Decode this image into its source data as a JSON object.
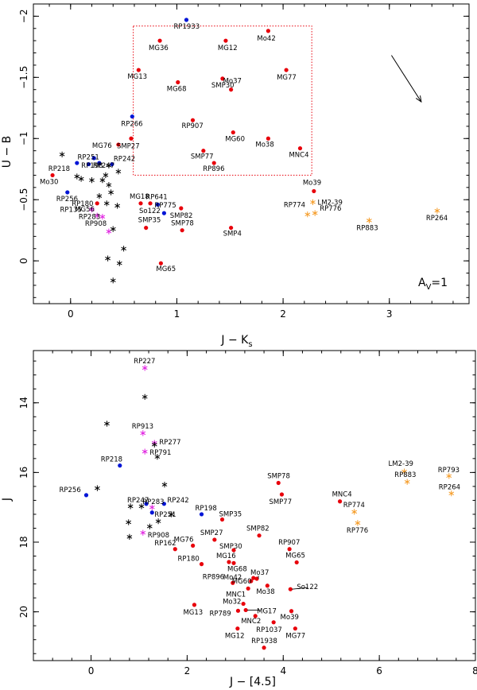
{
  "chart_data": [
    {
      "type": "scatter",
      "title": "",
      "xlabel": "J − K",
      "xlabel_sub": "s",
      "ylabel": "U − B",
      "xlim": [
        -0.35,
        3.75
      ],
      "ylim": [
        0.35,
        -2.1
      ],
      "xticks": [
        0,
        1,
        2,
        3
      ],
      "xtick_labels": [
        "0",
        "1",
        "2",
        "3"
      ],
      "yticks": [
        0,
        -0.5,
        -1,
        -1.5,
        -2
      ],
      "ytick_labels": [
        "0",
        "−0.5",
        "−1",
        "−1.5",
        "−2"
      ],
      "colors": {
        "red": "#e8000b",
        "blue": "#0015d6",
        "magenta": "#e020e0",
        "orange": "#f59a23",
        "black": "#000000"
      },
      "series": [
        {
          "name": "red-dots",
          "marker": "dot",
          "color": "red",
          "points": [
            {
              "label": "MG65",
              "x": 0.85,
              "y": 0.02
            },
            {
              "label": "SMP35",
              "x": 0.71,
              "y": -0.27
            },
            {
              "label": "SMP78",
              "x": 1.05,
              "y": -0.25
            },
            {
              "label": "SMP4",
              "x": 1.51,
              "y": -0.27
            },
            {
              "label": "MG18",
              "x": 0.66,
              "y": -0.47
            },
            {
              "label": "So122",
              "x": 0.75,
              "y": -0.47
            },
            {
              "label": "SMP82",
              "x": 1.04,
              "y": -0.43
            },
            {
              "label": "RP180",
              "x": 0.25,
              "y": -0.47
            },
            {
              "label": "Mo30",
              "x": -0.17,
              "y": -0.7
            },
            {
              "label": "RP896",
              "x": 1.35,
              "y": -0.8
            },
            {
              "label": "SMP77",
              "x": 1.25,
              "y": -0.9
            },
            {
              "label": "MG76",
              "x": 0.45,
              "y": -0.95
            },
            {
              "label": "SMP27",
              "x": 0.57,
              "y": -1.0
            },
            {
              "label": "RP907",
              "x": 1.15,
              "y": -1.15
            },
            {
              "label": "MG60",
              "x": 1.53,
              "y": -1.05
            },
            {
              "label": "Mo38",
              "x": 1.86,
              "y": -1.0
            },
            {
              "label": "MNC4",
              "x": 2.16,
              "y": -0.92
            },
            {
              "label": "Mo37",
              "x": 1.51,
              "y": -1.4
            },
            {
              "label": "SMP30",
              "x": 1.43,
              "y": -1.49
            },
            {
              "label": "MG68",
              "x": 1.01,
              "y": -1.46
            },
            {
              "label": "MG13",
              "x": 0.64,
              "y": -1.56
            },
            {
              "label": "MG77",
              "x": 2.03,
              "y": -1.56
            },
            {
              "label": "MG36",
              "x": 0.84,
              "y": -1.8
            },
            {
              "label": "MG12",
              "x": 1.46,
              "y": -1.8
            },
            {
              "label": "Mo42",
              "x": 1.86,
              "y": -1.88
            },
            {
              "label": "Mo39",
              "x": 2.29,
              "y": -0.57
            }
          ]
        },
        {
          "name": "blue-dots",
          "marker": "dot",
          "color": "blue",
          "points": [
            {
              "label": "RP775",
              "x": 0.88,
              "y": -0.39
            },
            {
              "label": "RP641",
              "x": 0.82,
              "y": -0.46
            },
            {
              "label": "RP256",
              "x": -0.03,
              "y": -0.56
            },
            {
              "label": "RP218",
              "x": 0.06,
              "y": -0.8
            },
            {
              "label": "RP251",
              "x": 0.17,
              "y": -0.79
            },
            {
              "label": "RP247",
              "x": 0.27,
              "y": -0.8
            },
            {
              "label": "RP198",
              "x": 0.22,
              "y": -0.84
            },
            {
              "label": "RP242",
              "x": 0.39,
              "y": -0.79
            },
            {
              "label": "RP266",
              "x": 0.58,
              "y": -1.18
            },
            {
              "label": "RP1933",
              "x": 1.09,
              "y": -1.97
            }
          ]
        },
        {
          "name": "magenta-stars",
          "marker": "star",
          "color": "magenta",
          "points": [
            {
              "label": "RP908",
              "x": 0.36,
              "y": -0.24
            },
            {
              "label": "RP283",
              "x": 0.3,
              "y": -0.36
            },
            {
              "label": "MG56",
              "x": 0.25,
              "y": -0.37
            },
            {
              "label": "RP135",
              "x": 0.2,
              "y": -0.42
            }
          ]
        },
        {
          "name": "orange-stars",
          "marker": "star",
          "color": "orange",
          "points": [
            {
              "label": "RP774",
              "x": 2.23,
              "y": -0.38
            },
            {
              "label": "RP776",
              "x": 2.3,
              "y": -0.39
            },
            {
              "label": "RP883",
              "x": 2.81,
              "y": -0.33
            },
            {
              "label": "RP264",
              "x": 3.45,
              "y": -0.41
            },
            {
              "label": "LM2-39",
              "x": 2.28,
              "y": -0.48
            }
          ]
        },
        {
          "name": "black-stars",
          "marker": "star",
          "color": "black",
          "points": [
            {
              "x": 0.4,
              "y": 0.16
            },
            {
              "x": 0.46,
              "y": 0.02
            },
            {
              "x": 0.35,
              "y": -0.02
            },
            {
              "x": 0.5,
              "y": -0.1
            },
            {
              "x": 0.4,
              "y": -0.26
            },
            {
              "x": 0.34,
              "y": -0.47
            },
            {
              "x": 0.38,
              "y": -0.56
            },
            {
              "x": 0.27,
              "y": -0.53
            },
            {
              "x": 0.44,
              "y": -0.45
            },
            {
              "x": 0.36,
              "y": -0.62
            },
            {
              "x": 0.06,
              "y": -0.69
            },
            {
              "x": 0.1,
              "y": -0.67
            },
            {
              "x": 0.2,
              "y": -0.66
            },
            {
              "x": 0.3,
              "y": -0.66
            },
            {
              "x": 0.33,
              "y": -0.7
            },
            {
              "x": 0.45,
              "y": -0.73
            },
            {
              "x": -0.08,
              "y": -0.87
            },
            {
              "x": 0.36,
              "y": -0.78
            }
          ]
        }
      ],
      "annotations": {
        "box": {
          "x": [
            0.59,
            2.27
          ],
          "y": [
            -0.7,
            -1.92
          ]
        },
        "arrow_label": "A",
        "arrow_label_sub": "V",
        "arrow_label_suffix": "=1",
        "arrow": {
          "x1": 3.02,
          "y1": -1.68,
          "x2": 3.3,
          "y2": -1.3
        }
      }
    },
    {
      "type": "scatter",
      "title": "",
      "xlabel": "J − [4.5]",
      "ylabel": "J",
      "xlim": [
        -1.2,
        8.0
      ],
      "ylim": [
        21.4,
        12.5
      ],
      "xticks": [
        0,
        2,
        4,
        6,
        8
      ],
      "xtick_labels": [
        "0",
        "2",
        "4",
        "6",
        "8"
      ],
      "yticks": [
        14,
        16,
        18,
        20
      ],
      "ytick_labels": [
        "14",
        "16",
        "18",
        "20"
      ],
      "series": [
        {
          "name": "red-dots",
          "marker": "dot",
          "color": "red",
          "points": [
            {
              "label": "SMP78",
              "x": 3.9,
              "y": 16.3
            },
            {
              "label": "SMP77",
              "x": 3.97,
              "y": 16.63
            },
            {
              "label": "SMP35",
              "x": 2.73,
              "y": 17.35
            },
            {
              "label": "RP162",
              "x": 1.75,
              "y": 18.2
            },
            {
              "label": "SMP82",
              "x": 3.5,
              "y": 17.81
            },
            {
              "label": "SMP27",
              "x": 2.57,
              "y": 17.93
            },
            {
              "label": "MG76",
              "x": 2.12,
              "y": 18.1
            },
            {
              "label": "SMP30",
              "x": 2.97,
              "y": 18.23
            },
            {
              "label": "RP907",
              "x": 4.13,
              "y": 18.2
            },
            {
              "label": "RP180",
              "x": 2.3,
              "y": 18.63
            },
            {
              "label": "MG16",
              "x": 2.87,
              "y": 18.57
            },
            {
              "label": "MG68",
              "x": 2.97,
              "y": 18.6
            },
            {
              "label": "MG65",
              "x": 4.28,
              "y": 18.58
            },
            {
              "label": "RP896",
              "x": 2.95,
              "y": 19.17
            },
            {
              "label": "MG60",
              "x": 3.33,
              "y": 19.12
            },
            {
              "label": "Mo42",
              "x": 3.38,
              "y": 19.03
            },
            {
              "label": "Mo37",
              "x": 3.45,
              "y": 19.05
            },
            {
              "label": "Mo38",
              "x": 3.67,
              "y": 19.25
            },
            {
              "label": "MNC1",
              "x": 3.27,
              "y": 19.33
            },
            {
              "label": "So122",
              "x": 4.15,
              "y": 19.35
            },
            {
              "label": "MG13",
              "x": 2.15,
              "y": 19.8
            },
            {
              "label": "Mo32",
              "x": 3.17,
              "y": 19.77
            },
            {
              "label": "RP789",
              "x": 3.06,
              "y": 19.97
            },
            {
              "label": "MG17",
              "x": 3.22,
              "y": 19.95
            },
            {
              "label": "Mo39",
              "x": 4.17,
              "y": 19.98
            },
            {
              "label": "MNC2",
              "x": 3.42,
              "y": 20.12
            },
            {
              "label": "MNC4",
              "x": 5.18,
              "y": 16.83
            },
            {
              "label": "MG12",
              "x": 3.05,
              "y": 20.48
            },
            {
              "label": "RP1037",
              "x": 3.8,
              "y": 20.3
            },
            {
              "label": "MG77",
              "x": 4.25,
              "y": 20.48
            },
            {
              "label": "RP1938",
              "x": 3.6,
              "y": 21.03
            }
          ]
        },
        {
          "name": "blue-dots",
          "marker": "dot",
          "color": "blue",
          "points": [
            {
              "label": "RP218",
              "x": 0.6,
              "y": 15.8
            },
            {
              "label": "RP256",
              "x": -0.1,
              "y": 16.65
            },
            {
              "label": "RP247",
              "x": 1.15,
              "y": 16.9
            },
            {
              "label": "RP242",
              "x": 1.52,
              "y": 16.9
            },
            {
              "label": "RP251",
              "x": 1.27,
              "y": 17.15
            },
            {
              "label": "RP198",
              "x": 2.3,
              "y": 17.2
            }
          ]
        },
        {
          "name": "magenta-stars",
          "marker": "star",
          "color": "magenta",
          "points": [
            {
              "label": "RP227",
              "x": 1.12,
              "y": 13.0
            },
            {
              "label": "RP913",
              "x": 1.08,
              "y": 14.87
            },
            {
              "label": "RP277",
              "x": 1.32,
              "y": 15.15
            },
            {
              "label": "RP791",
              "x": 1.12,
              "y": 15.4
            },
            {
              "label": "RP283",
              "x": 1.27,
              "y": 17.0
            },
            {
              "label": "RP908",
              "x": 1.08,
              "y": 17.73
            }
          ]
        },
        {
          "name": "orange-stars",
          "marker": "star",
          "color": "orange",
          "points": [
            {
              "label": "LM2-39",
              "x": 6.52,
              "y": 15.97
            },
            {
              "label": "RP883",
              "x": 6.58,
              "y": 16.27
            },
            {
              "label": "RP793",
              "x": 7.45,
              "y": 16.1
            },
            {
              "label": "RP264",
              "x": 7.5,
              "y": 16.6
            },
            {
              "label": "RP774",
              "x": 5.48,
              "y": 17.13
            },
            {
              "label": "RP776",
              "x": 5.55,
              "y": 17.45
            }
          ]
        },
        {
          "name": "black-stars",
          "marker": "star",
          "color": "black",
          "points": [
            {
              "x": 1.12,
              "y": 13.83
            },
            {
              "x": 0.33,
              "y": 14.6
            },
            {
              "x": 1.32,
              "y": 15.2
            },
            {
              "x": 1.38,
              "y": 15.55
            },
            {
              "x": 1.53,
              "y": 16.35
            },
            {
              "x": 0.13,
              "y": 16.45
            },
            {
              "x": 0.82,
              "y": 16.97
            },
            {
              "x": 1.05,
              "y": 16.97
            },
            {
              "x": 1.67,
              "y": 17.2
            },
            {
              "x": 1.4,
              "y": 17.4
            },
            {
              "x": 0.78,
              "y": 17.43
            },
            {
              "x": 1.22,
              "y": 17.55
            },
            {
              "x": 0.8,
              "y": 17.85
            }
          ]
        }
      ]
    }
  ]
}
